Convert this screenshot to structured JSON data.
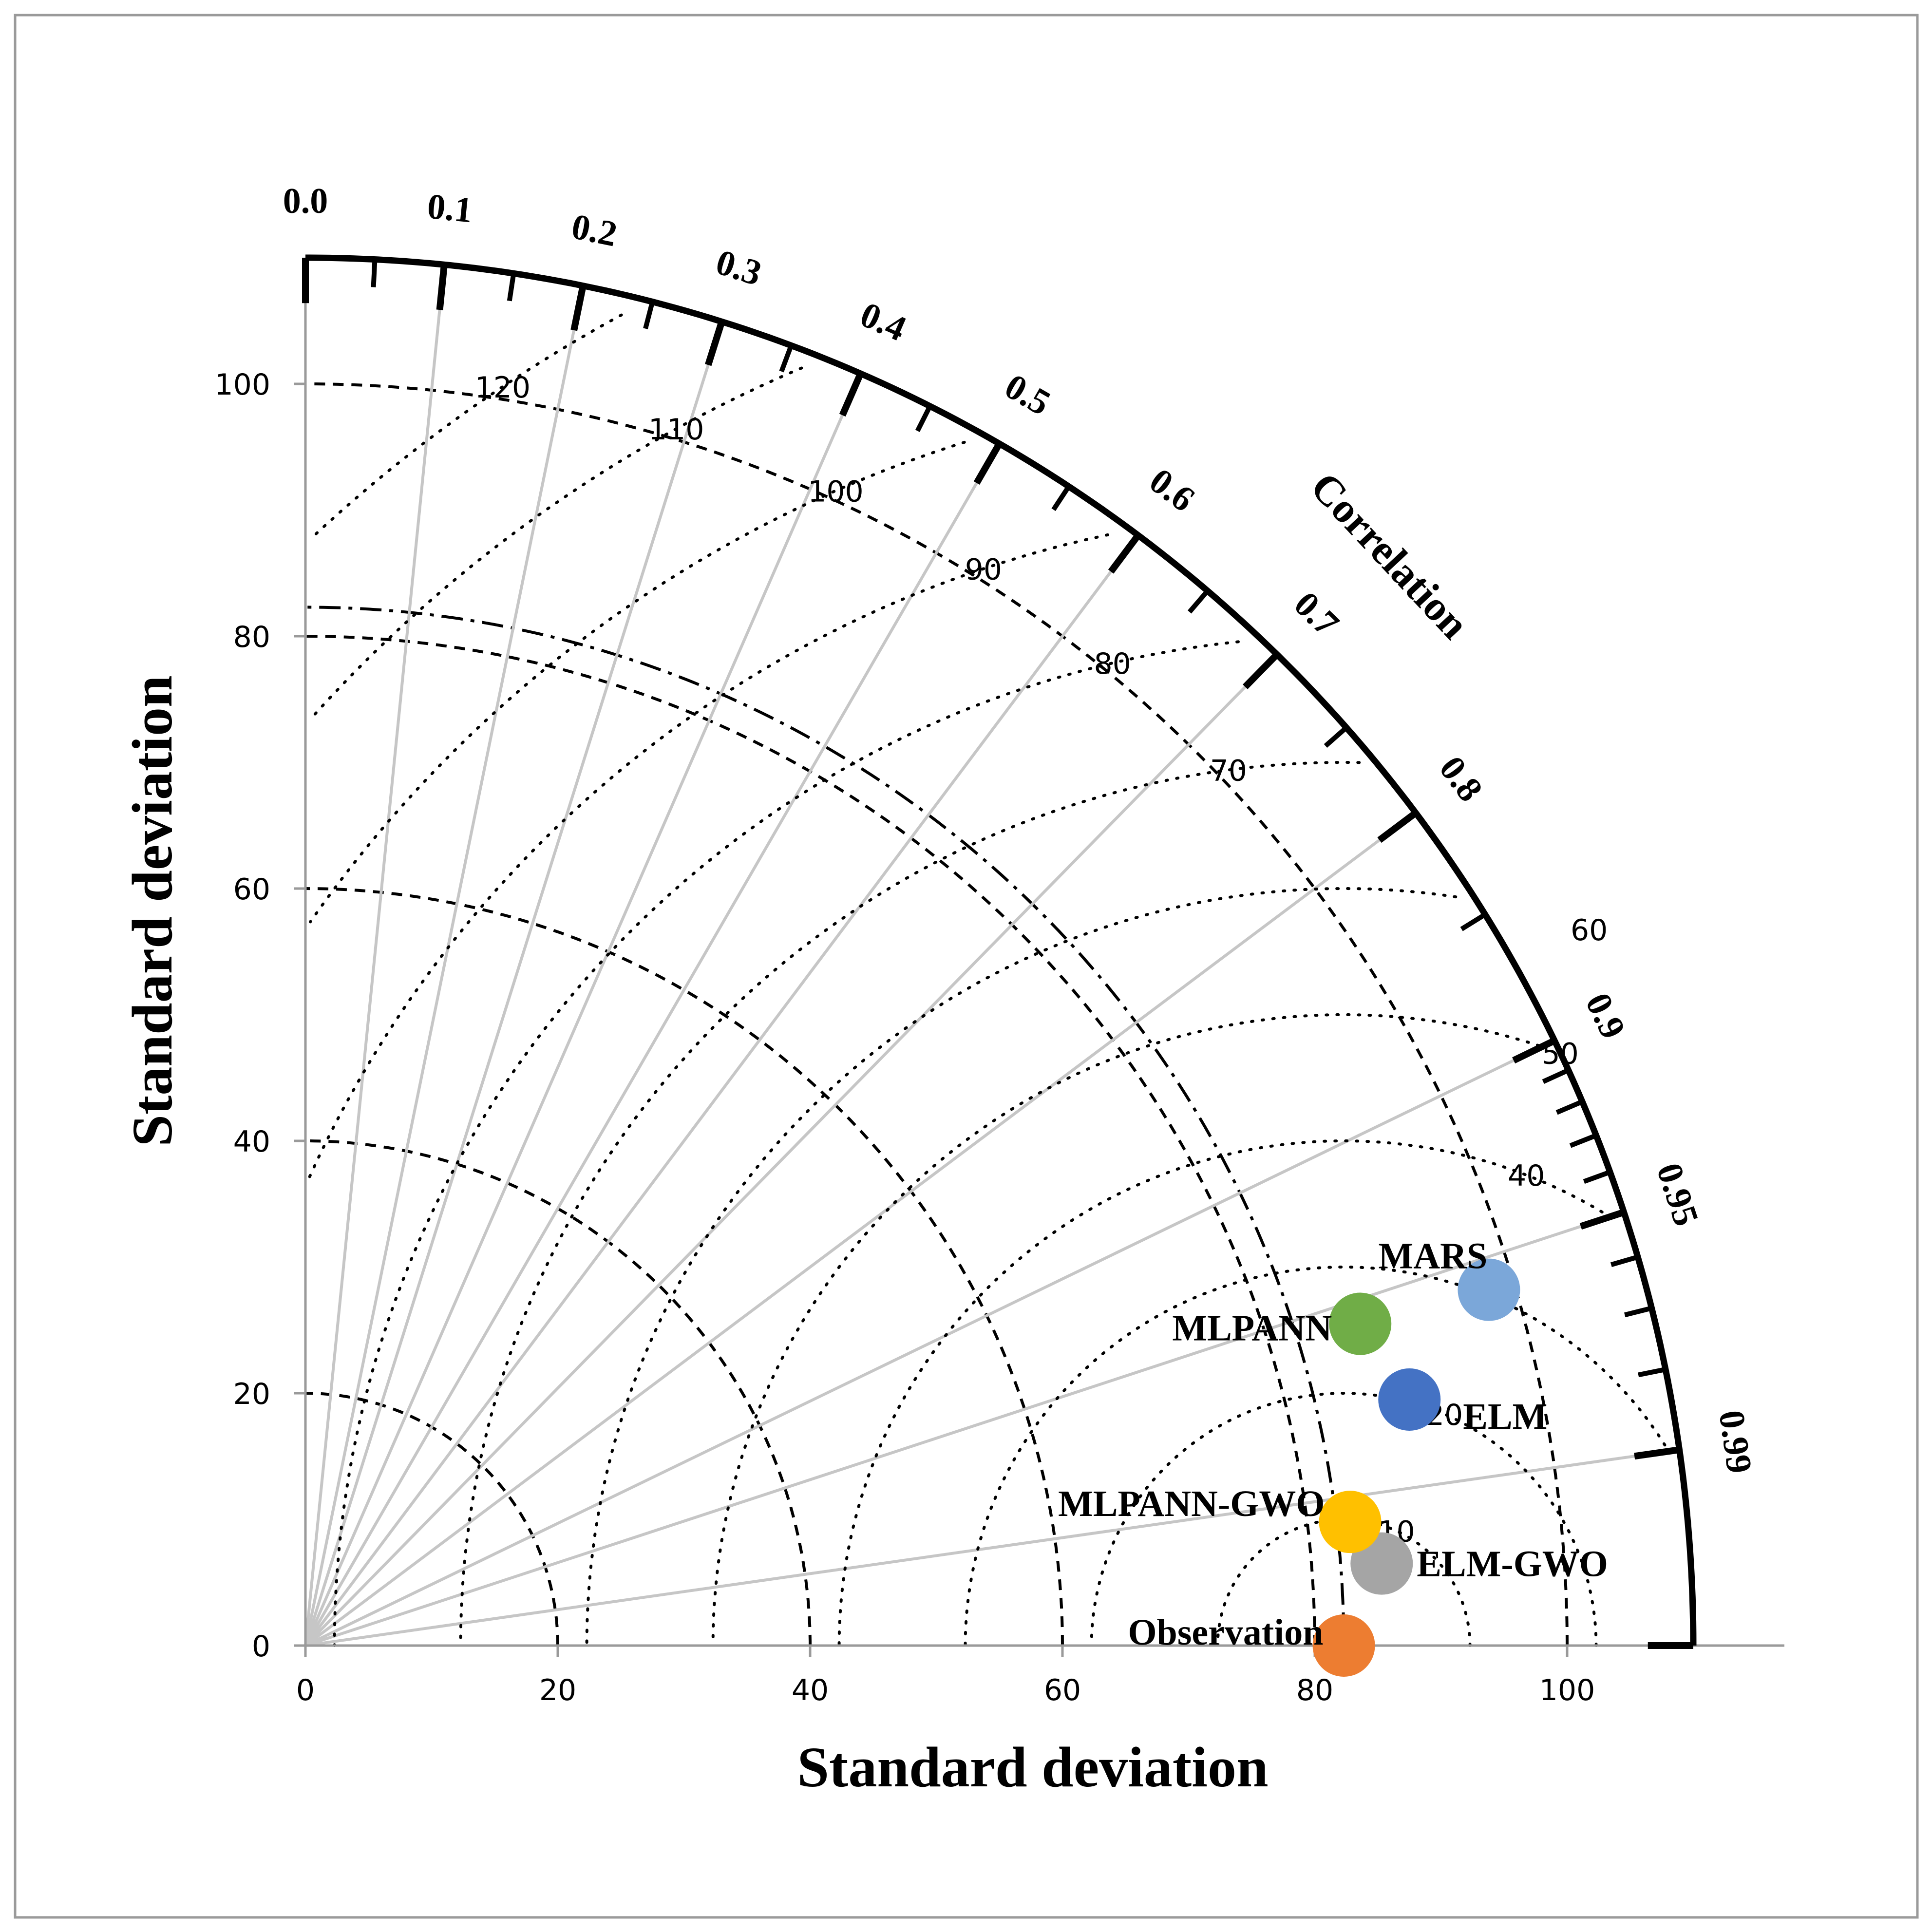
{
  "chart_data": {
    "type": "scatter",
    "subtype": "taylor-diagram",
    "xlabel": "Standard deviation",
    "ylabel": "Standard deviation",
    "arc_label": "Correlation",
    "std_max": 110,
    "std_ticks": [
      0,
      20,
      40,
      60,
      80,
      100
    ],
    "std_ref_circles": [
      20,
      40,
      60,
      80,
      100
    ],
    "observation_std": 82.3,
    "rmsd_contours": [
      10,
      20,
      30,
      40,
      50,
      60,
      70,
      80,
      90,
      100,
      110,
      120
    ],
    "correlation_major_ticks": [
      "0.0",
      "0.1",
      "0.2",
      "0.3",
      "0.4",
      "0.5",
      "0.6",
      "0.7",
      "0.8",
      "0.9",
      "0.95",
      "0.99"
    ],
    "correlation_minor_ticks": [
      0.05,
      0.15,
      0.25,
      0.35,
      0.45,
      0.55,
      0.65,
      0.75,
      0.85,
      0.91,
      0.92,
      0.93,
      0.94,
      0.96,
      0.97,
      0.98
    ],
    "correlation_rays": [
      0.1,
      0.2,
      0.3,
      0.4,
      0.5,
      0.6,
      0.7,
      0.8,
      0.9,
      0.95,
      0.99
    ],
    "points": [
      {
        "name": "Observation",
        "x": 82.3,
        "y": 0,
        "color": "#ED7D31"
      },
      {
        "name": "ELM-GWO",
        "x": 85.3,
        "y": 6.5,
        "color": "#A5A5A5"
      },
      {
        "name": "MLPANN-GWO",
        "x": 82.8,
        "y": 9.8,
        "color": "#FFC000"
      },
      {
        "name": "ELM",
        "x": 87.5,
        "y": 19.5,
        "color": "#4472C4"
      },
      {
        "name": "MLPANN",
        "x": 83.6,
        "y": 25.5,
        "color": "#70AD47"
      },
      {
        "name": "MARS",
        "x": 93.8,
        "y": 28.2,
        "color": "#7BA7D9"
      }
    ]
  }
}
